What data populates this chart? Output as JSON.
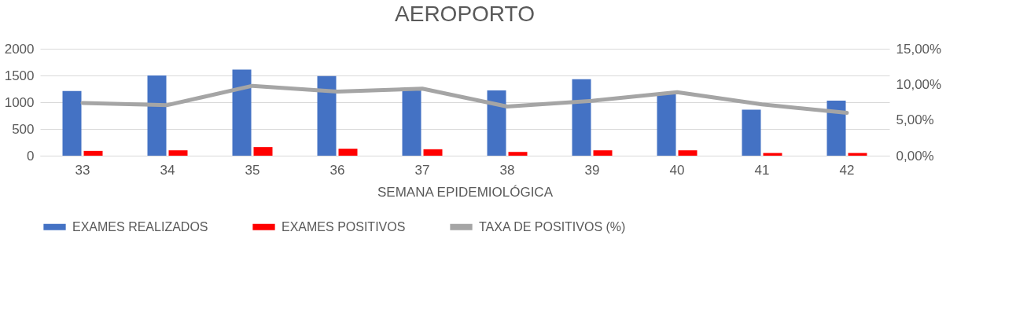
{
  "chart_data": {
    "type": "bar",
    "title": "AEROPORTO",
    "xlabel": "SEMANA EPIDEMIOLÓGICA",
    "categories": [
      "33",
      "34",
      "35",
      "36",
      "37",
      "38",
      "39",
      "40",
      "41",
      "42"
    ],
    "series": [
      {
        "name": "EXAMES REALIZADOS",
        "color": "#4472c4",
        "values": [
          1210,
          1500,
          1610,
          1490,
          1230,
          1220,
          1430,
          1170,
          860,
          1030
        ]
      },
      {
        "name": "EXAMES POSITIVOS",
        "color": "#ff0000",
        "values": [
          90,
          100,
          160,
          130,
          120,
          70,
          100,
          100,
          50,
          50
        ]
      },
      {
        "name": "TAXA DE POSITIVOS (%)",
        "color": "#a5a5a5",
        "type": "line",
        "axis": "y2",
        "values": [
          7.4,
          7.1,
          9.8,
          9.0,
          9.4,
          6.9,
          7.7,
          8.9,
          7.2,
          6.0
        ]
      }
    ],
    "ylim": [
      0,
      2000
    ],
    "yticks": [
      0,
      500,
      1000,
      1500,
      2000
    ],
    "y2lim": [
      0,
      15
    ],
    "y2ticks": [
      {
        "value": 0,
        "label": "0,00%"
      },
      {
        "value": 5,
        "label": "5,00%"
      },
      {
        "value": 10,
        "label": "10,00%"
      },
      {
        "value": 15,
        "label": "15,00%"
      }
    ],
    "grid": "y",
    "legend": "bottom",
    "marker": "none"
  }
}
